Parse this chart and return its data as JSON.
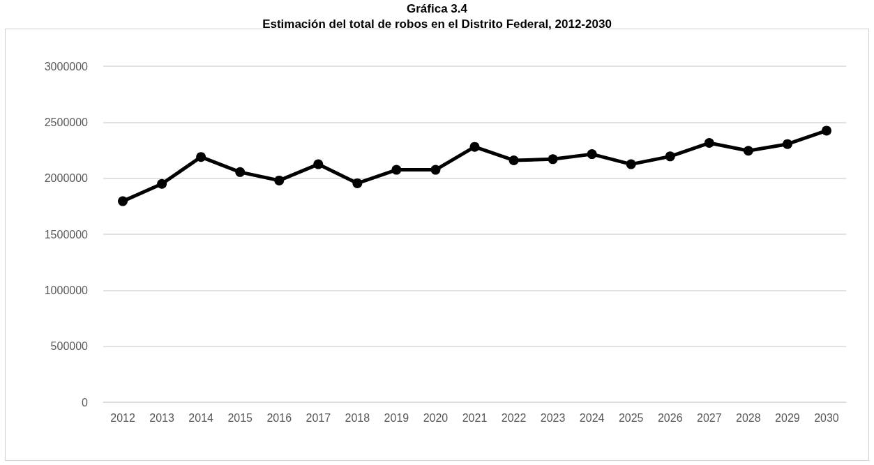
{
  "chart_data": {
    "type": "line",
    "title": "Gráfica 3.4",
    "subtitle": "Estimación del total de robos en el Distrito Federal, 2012-2030",
    "categories": [
      "2012",
      "2013",
      "2014",
      "2015",
      "2016",
      "2017",
      "2018",
      "2019",
      "2020",
      "2021",
      "2022",
      "2023",
      "2024",
      "2025",
      "2026",
      "2027",
      "2028",
      "2029",
      "2030"
    ],
    "series": [
      {
        "color": "#000000",
        "values": [
          1795000,
          1950000,
          2190000,
          2055000,
          1980000,
          2125000,
          1955000,
          2075000,
          2075000,
          2280000,
          2160000,
          2170000,
          2215000,
          2125000,
          2195000,
          2315000,
          2245000,
          2305000,
          2425000
        ]
      }
    ],
    "ylim": [
      0,
      3000000
    ],
    "yticks": [
      0,
      500000,
      1000000,
      1500000,
      2000000,
      2500000,
      3000000
    ],
    "grid": "y",
    "marker": "circle",
    "line_style": "solid"
  }
}
